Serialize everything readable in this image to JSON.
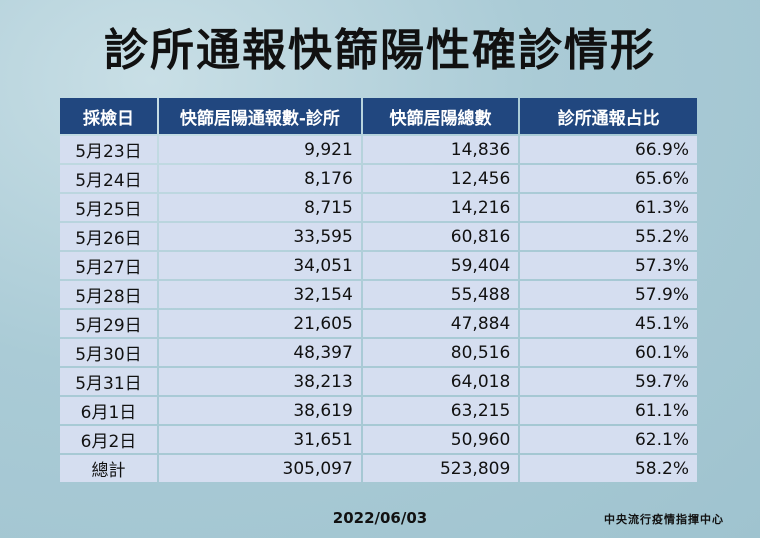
{
  "title": "診所通報快篩陽性確診情形",
  "table": {
    "headers": [
      "採檢日",
      "快篩居陽通報數-診所",
      "快篩居陽總數",
      "診所通報占比"
    ],
    "rows": [
      [
        "5月23日",
        "9,921",
        "14,836",
        "66.9%"
      ],
      [
        "5月24日",
        "8,176",
        "12,456",
        "65.6%"
      ],
      [
        "5月25日",
        "8,715",
        "14,216",
        "61.3%"
      ],
      [
        "5月26日",
        "33,595",
        "60,816",
        "55.2%"
      ],
      [
        "5月27日",
        "34,051",
        "59,404",
        "57.3%"
      ],
      [
        "5月28日",
        "32,154",
        "55,488",
        "57.9%"
      ],
      [
        "5月29日",
        "21,605",
        "47,884",
        "45.1%"
      ],
      [
        "5月30日",
        "48,397",
        "80,516",
        "60.1%"
      ],
      [
        "5月31日",
        "38,213",
        "64,018",
        "59.7%"
      ],
      [
        "6月1日",
        "38,619",
        "63,215",
        "61.1%"
      ],
      [
        "6月2日",
        "31,651",
        "50,960",
        "62.1%"
      ],
      [
        "總計",
        "305,097",
        "523,809",
        "58.2%"
      ]
    ]
  },
  "footer": {
    "date": "2022/06/03",
    "organization": "中央流行疫情指揮中心"
  },
  "colors": {
    "header_bg": "#21477f",
    "cell_bg": "#d5def0",
    "page_bg": "#a8cad6"
  }
}
